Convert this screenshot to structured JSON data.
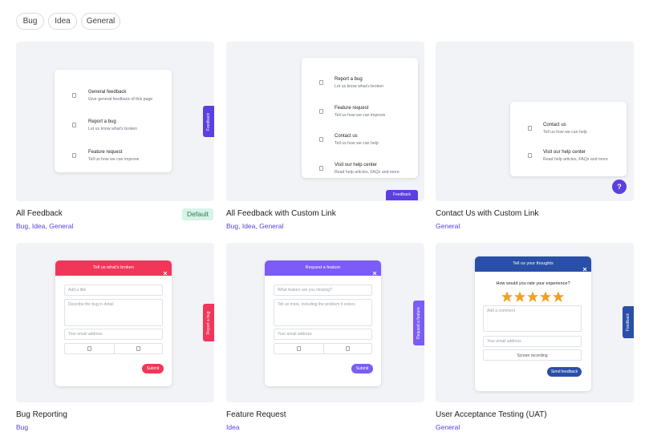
{
  "filters": [
    "Bug",
    "Idea",
    "General"
  ],
  "templates": [
    {
      "title": "All Feedback",
      "badge": "Default",
      "tags": "Bug, Idea, General",
      "preview": {
        "kind": "menu",
        "items": [
          {
            "title": "General feedback",
            "subtitle": "Give general feedback of this page"
          },
          {
            "title": "Report a bug",
            "subtitle": "Let us know what's broken"
          },
          {
            "title": "Feature request",
            "subtitle": "Tell us how we can improve"
          }
        ],
        "tab": "Feedback"
      }
    },
    {
      "title": "All Feedback with Custom Link",
      "tags": "Bug, Idea, General",
      "preview": {
        "kind": "menu",
        "items": [
          {
            "title": "Report a bug",
            "subtitle": "Let us know what's broken"
          },
          {
            "title": "Feature request",
            "subtitle": "Tell us how we can improve"
          },
          {
            "title": "Contact us",
            "subtitle": "Tell us how we can help"
          },
          {
            "title": "Visit our help center",
            "subtitle": "Read help articles, FAQs and more"
          }
        ],
        "button": "Feedback"
      }
    },
    {
      "title": "Contact Us with Custom Link",
      "tags": "General",
      "preview": {
        "kind": "menu",
        "items": [
          {
            "title": "Contact us",
            "subtitle": "Tell us how we can help"
          },
          {
            "title": "Visit our help center",
            "subtitle": "Read help articles, FAQs and more"
          }
        ],
        "button": "?"
      }
    },
    {
      "title": "Bug Reporting",
      "tags": "Bug",
      "preview": {
        "kind": "form",
        "header": "Tell us what's broken",
        "fields": [
          "Add a title",
          "Describe the bug in detail",
          "Your email address"
        ],
        "submit": "Submit",
        "tab": "Report a bug"
      }
    },
    {
      "title": "Feature Request",
      "tags": "Idea",
      "preview": {
        "kind": "form",
        "header": "Request a feature",
        "fields": [
          "What feature are you missing?",
          "Tell us more, including the problem it solves",
          "Your email address"
        ],
        "submit": "Submit",
        "tab": "Request a feature"
      }
    },
    {
      "title": "User Acceptance Testing (UAT)",
      "tags": "General",
      "preview": {
        "kind": "rating",
        "header": "Tell us your thoughts",
        "question": "How would you rate your experience?",
        "fields": [
          "Add a comment",
          "Your email address",
          "Screen recording"
        ],
        "submit": "Send feedback",
        "tab": "Feedback"
      }
    }
  ]
}
